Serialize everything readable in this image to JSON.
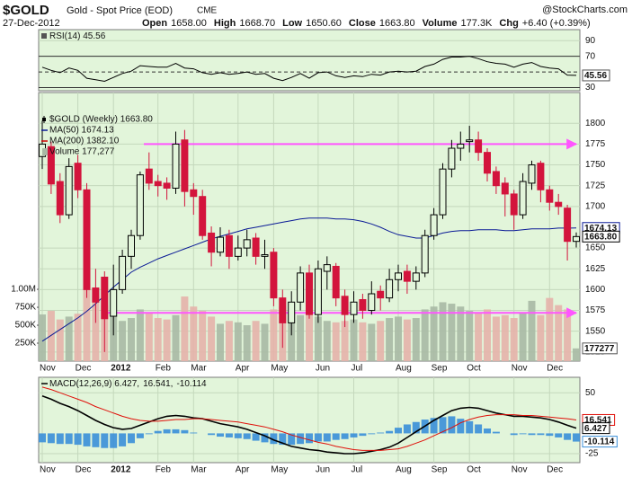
{
  "header": {
    "symbol": "$GOLD",
    "name": "Gold - Spot Price (EOD)",
    "exchange": "CME",
    "source": "@StockCharts.com",
    "date": "27-Dec-2012",
    "quote": [
      {
        "label": "Open",
        "value": "1658.00"
      },
      {
        "label": "High",
        "value": "1668.70"
      },
      {
        "label": "Low",
        "value": "1650.60"
      },
      {
        "label": "Close",
        "value": "1663.80"
      },
      {
        "label": "Volume",
        "value": "177.3K"
      },
      {
        "label": "Chg",
        "value": "+6.40 (+0.39%)"
      }
    ]
  },
  "chart_data": [
    {
      "type": "line",
      "title": "RSI(14) 45.56",
      "color": "#000000",
      "background": "#e2f5da",
      "grid_color": "#c4d8bc",
      "ylim": [
        26,
        104
      ],
      "yticks": [
        30,
        70,
        90
      ],
      "reference_lines": [
        {
          "value": 70
        },
        {
          "value": 50,
          "dashed": true
        },
        {
          "value": 30
        }
      ],
      "values": [
        56,
        52,
        49,
        55,
        52,
        42,
        40,
        38,
        43,
        48,
        51,
        58,
        57,
        56,
        56,
        61,
        55,
        54,
        49,
        47,
        49,
        47,
        48,
        50,
        47,
        48,
        42,
        39,
        43,
        48,
        42,
        49,
        50,
        45,
        43,
        45,
        44,
        47,
        46,
        50,
        51,
        50,
        51,
        57,
        60,
        66,
        69,
        69,
        70,
        67,
        63,
        61,
        60,
        56,
        60,
        62,
        57,
        55,
        54,
        46,
        45.56
      ],
      "value_boxes": [
        {
          "value": 45.56,
          "label": "45.56"
        }
      ]
    },
    {
      "type": "candlestick",
      "title": "$GOLD (Weekly) 1663.80",
      "background": "#e2f5da",
      "grid_color": "#c4d8bc",
      "up_color": "#000000",
      "down_color": "#d3143c",
      "ylim": [
        1514,
        1837
      ],
      "yticks": [
        1525,
        1550,
        1575,
        1600,
        1625,
        1650,
        1700,
        1725,
        1750,
        1775,
        1800
      ],
      "categories": [
        "Nov",
        null,
        null,
        null,
        "Dec",
        null,
        null,
        null,
        "2012",
        null,
        null,
        null,
        null,
        "Feb",
        null,
        null,
        null,
        "Mar",
        null,
        null,
        null,
        null,
        "Apr",
        null,
        null,
        null,
        "May",
        null,
        null,
        null,
        null,
        "Jun",
        null,
        null,
        null,
        "Jul",
        null,
        null,
        null,
        null,
        "Aug",
        null,
        null,
        null,
        "Sep",
        null,
        null,
        null,
        "Oct",
        null,
        null,
        null,
        null,
        "Nov",
        null,
        null,
        null,
        "Dec",
        null,
        null,
        null
      ],
      "open": [
        1760,
        1772,
        1730,
        1690,
        1752,
        1720,
        1602,
        1615,
        1568,
        1600,
        1640,
        1665,
        1745,
        1730,
        1728,
        1722,
        1780,
        1720,
        1712,
        1668,
        1645,
        1665,
        1640,
        1650,
        1662,
        1640,
        1645,
        1590,
        1560,
        1585,
        1620,
        1570,
        1622,
        1628,
        1592,
        1570,
        1588,
        1575,
        1598,
        1590,
        1612,
        1622,
        1610,
        1620,
        1665,
        1690,
        1745,
        1770,
        1778,
        1780,
        1765,
        1742,
        1728,
        1715,
        1690,
        1728,
        1752,
        1720,
        1705,
        1698,
        1658.0
      ],
      "high": [
        1803,
        1778,
        1740,
        1758,
        1762,
        1728,
        1625,
        1622,
        1630,
        1648,
        1672,
        1742,
        1765,
        1738,
        1735,
        1790,
        1792,
        1728,
        1720,
        1676,
        1675,
        1672,
        1665,
        1672,
        1668,
        1660,
        1650,
        1600,
        1598,
        1628,
        1630,
        1635,
        1640,
        1632,
        1600,
        1598,
        1595,
        1610,
        1605,
        1625,
        1630,
        1630,
        1628,
        1672,
        1698,
        1752,
        1780,
        1790,
        1797,
        1790,
        1770,
        1748,
        1735,
        1720,
        1740,
        1755,
        1755,
        1725,
        1715,
        1702,
        1668.7
      ],
      "low": [
        1745,
        1715,
        1680,
        1685,
        1710,
        1590,
        1560,
        1525,
        1545,
        1595,
        1625,
        1660,
        1720,
        1712,
        1708,
        1715,
        1700,
        1690,
        1660,
        1628,
        1640,
        1625,
        1635,
        1640,
        1630,
        1625,
        1580,
        1530,
        1545,
        1575,
        1565,
        1560,
        1600,
        1580,
        1555,
        1560,
        1565,
        1570,
        1575,
        1585,
        1598,
        1595,
        1600,
        1615,
        1660,
        1685,
        1735,
        1755,
        1765,
        1755,
        1730,
        1715,
        1688,
        1672,
        1685,
        1720,
        1705,
        1695,
        1690,
        1635,
        1650.6
      ],
      "close": [
        1775,
        1727,
        1690,
        1748,
        1720,
        1600,
        1585,
        1565,
        1600,
        1640,
        1665,
        1738,
        1728,
        1725,
        1722,
        1775,
        1718,
        1712,
        1665,
        1645,
        1663,
        1640,
        1650,
        1660,
        1640,
        1642,
        1590,
        1560,
        1585,
        1620,
        1570,
        1625,
        1630,
        1590,
        1570,
        1585,
        1575,
        1595,
        1590,
        1612,
        1620,
        1610,
        1620,
        1665,
        1690,
        1745,
        1770,
        1775,
        1780,
        1765,
        1740,
        1725,
        1715,
        1690,
        1730,
        1750,
        1720,
        1705,
        1700,
        1658,
        1663.8
      ],
      "overlays": [
        {
          "name": "MA(50) 1674.13",
          "color": "#0a1a96",
          "values": [
            1538,
            1545,
            1552,
            1559,
            1566,
            1574,
            1583,
            1593,
            1603,
            1612,
            1621,
            1627,
            1632,
            1637,
            1641,
            1645,
            1649,
            1653,
            1657,
            1661,
            1664,
            1667,
            1670,
            1673,
            1675,
            1677,
            1679,
            1681,
            1683,
            1685,
            1686,
            1686,
            1686,
            1685,
            1685,
            1684,
            1682,
            1679,
            1675,
            1670,
            1666,
            1664,
            1662,
            1662,
            1665,
            1668,
            1670,
            1671,
            1671,
            1672,
            1672,
            1672,
            1671,
            1671,
            1672,
            1673,
            1673,
            1673,
            1674,
            1674,
            1674.13
          ]
        },
        {
          "name": "MA(200) 1382.10",
          "color": "#cc0000"
        }
      ],
      "volume": {
        "name": "Volume 177,277",
        "up_color": "#a9b9a4",
        "down_color": "#e6b3aa",
        "vlim": [
          0,
          3740000
        ],
        "vticks": [
          {
            "value": 250000,
            "label": "250K"
          },
          {
            "value": 500000,
            "label": "500K"
          },
          {
            "value": 750000,
            "label": "750K"
          },
          {
            "value": 1000000,
            "label": "1.00M"
          }
        ],
        "values": [
          650000,
          700000,
          580000,
          620000,
          660000,
          1000000,
          900000,
          780000,
          640000,
          560000,
          600000,
          720000,
          680000,
          600000,
          580000,
          640000,
          900000,
          760000,
          700000,
          620000,
          520000,
          560000,
          540000,
          500000,
          560000,
          520000,
          720000,
          760000,
          680000,
          640000,
          700000,
          620000,
          560000,
          540000,
          560000,
          580000,
          540000,
          520000,
          560000,
          600000,
          620000,
          580000,
          600000,
          720000,
          760000,
          820000,
          800000,
          760000,
          700000,
          680000,
          720000,
          620000,
          640000,
          600000,
          680000,
          840000,
          640000,
          880000,
          780000,
          720000,
          177277
        ],
        "value_box": {
          "value": 177277,
          "label": "177277"
        }
      },
      "annotation_lines": [
        {
          "value": 1775,
          "color": "#ff55ff"
        },
        {
          "value": 1572,
          "color": "#ff55ff"
        }
      ],
      "value_boxes": [
        {
          "value": 1674.13,
          "label": "1674.13"
        },
        {
          "value": 1663.8,
          "label": "1663.80"
        }
      ]
    },
    {
      "type": "macd",
      "background": "#e2f5da",
      "grid_color": "#c4d8bc",
      "legend": [
        {
          "text": "MACD(12,26,9) 6.427,",
          "color": "#000000"
        },
        {
          "text": "16.541,",
          "color": "#e0100a"
        },
        {
          "text": "-10.114",
          "color": "#1a7fd0"
        }
      ],
      "ylim": [
        -36,
        69
      ],
      "yticks": [
        -25,
        50
      ],
      "categories": [
        "Nov",
        null,
        null,
        null,
        "Dec",
        null,
        null,
        null,
        "2012",
        null,
        null,
        null,
        null,
        "Feb",
        null,
        null,
        null,
        "Mar",
        null,
        null,
        null,
        null,
        "Apr",
        null,
        null,
        null,
        "May",
        null,
        null,
        null,
        null,
        "Jun",
        null,
        null,
        null,
        "Jul",
        null,
        null,
        null,
        null,
        "Aug",
        null,
        null,
        null,
        "Sep",
        null,
        null,
        null,
        "Oct",
        null,
        null,
        null,
        null,
        "Nov",
        null,
        null,
        null,
        "Dec",
        null,
        null,
        null
      ],
      "series": [
        {
          "name": "MACD",
          "color": "#000000",
          "values": [
            46,
            42,
            37,
            33,
            28,
            22,
            16,
            11,
            7,
            5,
            6,
            10,
            14,
            18,
            21,
            22,
            21,
            19,
            18,
            15,
            12,
            10,
            8,
            5,
            1,
            -3,
            -8,
            -12,
            -16,
            -18,
            -20,
            -21,
            -23,
            -24,
            -25,
            -25,
            -24,
            -22,
            -20,
            -17,
            -12,
            -5,
            2,
            9,
            16,
            22,
            28,
            31,
            32,
            31,
            28,
            25,
            23,
            21,
            21,
            20,
            19,
            17,
            14,
            10,
            6.427
          ]
        },
        {
          "name": "Signal",
          "color": "#e0100a",
          "values": [
            57,
            54,
            50,
            46,
            42,
            38,
            33,
            29,
            25,
            21,
            18,
            16,
            15,
            15,
            16,
            17,
            17,
            18,
            18,
            17,
            16,
            15,
            14,
            12,
            10,
            8,
            5,
            2,
            -2,
            -5,
            -8,
            -11,
            -13,
            -16,
            -18,
            -20,
            -21,
            -21,
            -21,
            -20,
            -19,
            -16,
            -12,
            -8,
            -3,
            2,
            7,
            13,
            17,
            20,
            22,
            23,
            23,
            23,
            22,
            22,
            21,
            20,
            19,
            18,
            16.541
          ]
        }
      ],
      "histogram": {
        "color": "#3a8fd8",
        "values": [
          -11,
          -12,
          -13,
          -13,
          -14,
          -16,
          -17,
          -18,
          -18,
          -16,
          -12,
          -6,
          -1,
          3,
          5,
          5,
          4,
          1,
          0,
          -2,
          -4,
          -5,
          -6,
          -7,
          -9,
          -11,
          -13,
          -14,
          -14,
          -13,
          -12,
          -10,
          -10,
          -8,
          -7,
          -5,
          -3,
          -1,
          1,
          3,
          7,
          11,
          14,
          17,
          19,
          20,
          21,
          18,
          15,
          11,
          6,
          2,
          0,
          -2,
          -1,
          -2,
          -2,
          -3,
          -5,
          -8,
          -10.114
        ]
      },
      "value_boxes": [
        {
          "value": 16.541,
          "label": "16.541"
        },
        {
          "value": 6.427,
          "label": "6.427"
        },
        {
          "value": -10.114,
          "label": "-10.114"
        }
      ]
    }
  ]
}
